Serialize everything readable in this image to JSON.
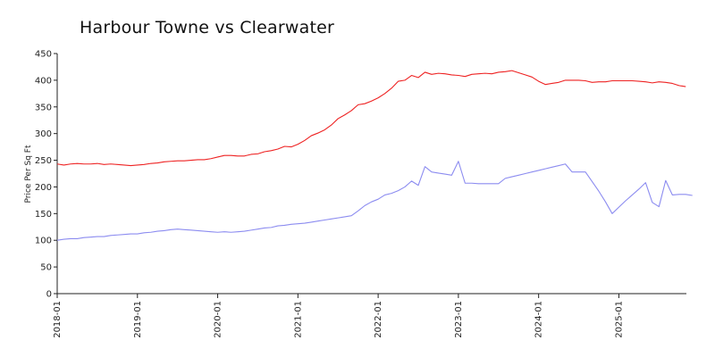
{
  "chart_data": {
    "type": "line",
    "title": "Harbour Towne vs Clearwater",
    "xlabel": "",
    "ylabel": "Price Per Sq Ft",
    "ylim": [
      0,
      450
    ],
    "xlim": [
      "2018-01",
      "2025-10"
    ],
    "yticks": [
      "0",
      "50",
      "100",
      "150",
      "200",
      "250",
      "300",
      "350",
      "400",
      "450"
    ],
    "xticks": [
      "2018-01",
      "2019-01",
      "2020-01",
      "2021-01",
      "2022-01",
      "2023-01",
      "2024-01",
      "2025-01"
    ],
    "grid": false,
    "legend": "none",
    "series": [
      {
        "color": "#ee2222",
        "points": [
          [
            "2018-01",
            243
          ],
          [
            "2018-02",
            241
          ],
          [
            "2018-03",
            243
          ],
          [
            "2018-04",
            244
          ],
          [
            "2018-05",
            243
          ],
          [
            "2018-06",
            243
          ],
          [
            "2018-07",
            244
          ],
          [
            "2018-08",
            242
          ],
          [
            "2018-09",
            243
          ],
          [
            "2018-10",
            242
          ],
          [
            "2018-11",
            241
          ],
          [
            "2018-12",
            240
          ],
          [
            "2019-01",
            241
          ],
          [
            "2019-02",
            242
          ],
          [
            "2019-03",
            244
          ],
          [
            "2019-04",
            245
          ],
          [
            "2019-05",
            247
          ],
          [
            "2019-06",
            248
          ],
          [
            "2019-07",
            249
          ],
          [
            "2019-08",
            249
          ],
          [
            "2019-09",
            250
          ],
          [
            "2019-10",
            251
          ],
          [
            "2019-11",
            251
          ],
          [
            "2019-12",
            253
          ],
          [
            "2020-01",
            256
          ],
          [
            "2020-02",
            259
          ],
          [
            "2020-03",
            259
          ],
          [
            "2020-04",
            258
          ],
          [
            "2020-05",
            258
          ],
          [
            "2020-06",
            261
          ],
          [
            "2020-07",
            262
          ],
          [
            "2020-08",
            266
          ],
          [
            "2020-09",
            268
          ],
          [
            "2020-10",
            271
          ],
          [
            "2020-11",
            276
          ],
          [
            "2020-12",
            275
          ],
          [
            "2021-01",
            280
          ],
          [
            "2021-02",
            287
          ],
          [
            "2021-03",
            296
          ],
          [
            "2021-04",
            301
          ],
          [
            "2021-05",
            307
          ],
          [
            "2021-06",
            316
          ],
          [
            "2021-07",
            328
          ],
          [
            "2021-08",
            335
          ],
          [
            "2021-09",
            343
          ],
          [
            "2021-10",
            354
          ],
          [
            "2021-11",
            356
          ],
          [
            "2021-12",
            361
          ],
          [
            "2022-01",
            367
          ],
          [
            "2022-02",
            375
          ],
          [
            "2022-03",
            385
          ],
          [
            "2022-04",
            398
          ],
          [
            "2022-05",
            400
          ],
          [
            "2022-06",
            409
          ],
          [
            "2022-07",
            405
          ],
          [
            "2022-08",
            415
          ],
          [
            "2022-09",
            411
          ],
          [
            "2022-10",
            413
          ],
          [
            "2022-11",
            412
          ],
          [
            "2022-12",
            410
          ],
          [
            "2023-01",
            409
          ],
          [
            "2023-02",
            407
          ],
          [
            "2023-03",
            411
          ],
          [
            "2023-04",
            412
          ],
          [
            "2023-05",
            413
          ],
          [
            "2023-06",
            412
          ],
          [
            "2023-07",
            415
          ],
          [
            "2023-08",
            416
          ],
          [
            "2023-09",
            418
          ],
          [
            "2023-10",
            414
          ],
          [
            "2023-11",
            410
          ],
          [
            "2023-12",
            406
          ],
          [
            "2024-01",
            398
          ],
          [
            "2024-02",
            392
          ],
          [
            "2024-03",
            394
          ],
          [
            "2024-04",
            396
          ],
          [
            "2024-05",
            400
          ],
          [
            "2024-06",
            400
          ],
          [
            "2024-07",
            400
          ],
          [
            "2024-08",
            399
          ],
          [
            "2024-09",
            396
          ],
          [
            "2024-10",
            397
          ],
          [
            "2024-11",
            397
          ],
          [
            "2024-12",
            399
          ],
          [
            "2025-01",
            399
          ],
          [
            "2025-02",
            399
          ],
          [
            "2025-03",
            399
          ],
          [
            "2025-04",
            398
          ],
          [
            "2025-05",
            397
          ],
          [
            "2025-06",
            395
          ],
          [
            "2025-07",
            397
          ],
          [
            "2025-08",
            396
          ],
          [
            "2025-09",
            394
          ],
          [
            "2025-10",
            390
          ],
          [
            "2025-11",
            388
          ]
        ]
      },
      {
        "color": "#8c8cf0",
        "points": [
          [
            "2018-01",
            100
          ],
          [
            "2018-02",
            102
          ],
          [
            "2018-03",
            103
          ],
          [
            "2018-04",
            103
          ],
          [
            "2018-05",
            105
          ],
          [
            "2018-06",
            106
          ],
          [
            "2018-07",
            107
          ],
          [
            "2018-08",
            107
          ],
          [
            "2018-09",
            109
          ],
          [
            "2018-10",
            110
          ],
          [
            "2018-11",
            111
          ],
          [
            "2018-12",
            112
          ],
          [
            "2019-01",
            112
          ],
          [
            "2019-02",
            114
          ],
          [
            "2019-03",
            115
          ],
          [
            "2019-04",
            117
          ],
          [
            "2019-05",
            118
          ],
          [
            "2019-06",
            120
          ],
          [
            "2019-07",
            121
          ],
          [
            "2019-08",
            120
          ],
          [
            "2019-09",
            119
          ],
          [
            "2019-10",
            118
          ],
          [
            "2019-11",
            117
          ],
          [
            "2019-12",
            116
          ],
          [
            "2020-01",
            115
          ],
          [
            "2020-02",
            116
          ],
          [
            "2020-03",
            115
          ],
          [
            "2020-04",
            116
          ],
          [
            "2020-05",
            117
          ],
          [
            "2020-06",
            119
          ],
          [
            "2020-07",
            121
          ],
          [
            "2020-08",
            123
          ],
          [
            "2020-09",
            124
          ],
          [
            "2020-10",
            127
          ],
          [
            "2020-11",
            128
          ],
          [
            "2020-12",
            130
          ],
          [
            "2021-01",
            131
          ],
          [
            "2021-02",
            132
          ],
          [
            "2021-03",
            134
          ],
          [
            "2021-04",
            136
          ],
          [
            "2021-05",
            138
          ],
          [
            "2021-06",
            140
          ],
          [
            "2021-07",
            142
          ],
          [
            "2021-08",
            144
          ],
          [
            "2021-09",
            146
          ],
          [
            "2021-10",
            155
          ],
          [
            "2021-11",
            165
          ],
          [
            "2021-12",
            172
          ],
          [
            "2022-01",
            177
          ],
          [
            "2022-02",
            185
          ],
          [
            "2022-03",
            188
          ],
          [
            "2022-04",
            193
          ],
          [
            "2022-05",
            200
          ],
          [
            "2022-06",
            211
          ],
          [
            "2022-07",
            203
          ],
          [
            "2022-08",
            238
          ],
          [
            "2022-09",
            228
          ],
          [
            "2022-10",
            226
          ],
          [
            "2022-11",
            224
          ],
          [
            "2022-12",
            222
          ],
          [
            "2023-01",
            248
          ],
          [
            "2023-02",
            207
          ],
          [
            "2023-03",
            207
          ],
          [
            "2023-04",
            206
          ],
          [
            "2023-05",
            206
          ],
          [
            "2023-06",
            206
          ],
          [
            "2023-07",
            206
          ],
          [
            "2023-08",
            216
          ],
          [
            "2023-09",
            219
          ],
          [
            "2023-10",
            222
          ],
          [
            "2023-11",
            225
          ],
          [
            "2023-12",
            228
          ],
          [
            "2024-01",
            231
          ],
          [
            "2024-02",
            234
          ],
          [
            "2024-03",
            237
          ],
          [
            "2024-04",
            240
          ],
          [
            "2024-05",
            243
          ],
          [
            "2024-06",
            228
          ],
          [
            "2024-07",
            228
          ],
          [
            "2024-08",
            228
          ],
          [
            "2024-09",
            210
          ],
          [
            "2024-10",
            192
          ],
          [
            "2024-11",
            172
          ],
          [
            "2024-12",
            150
          ],
          [
            "2025-01",
            162
          ],
          [
            "2025-02",
            174
          ],
          [
            "2025-03",
            185
          ],
          [
            "2025-04",
            196
          ],
          [
            "2025-05",
            208
          ],
          [
            "2025-06",
            171
          ],
          [
            "2025-07",
            163
          ],
          [
            "2025-08",
            212
          ],
          [
            "2025-09",
            185
          ],
          [
            "2025-10",
            186
          ],
          [
            "2025-11",
            186
          ],
          [
            "2025-12",
            184
          ]
        ]
      }
    ]
  }
}
